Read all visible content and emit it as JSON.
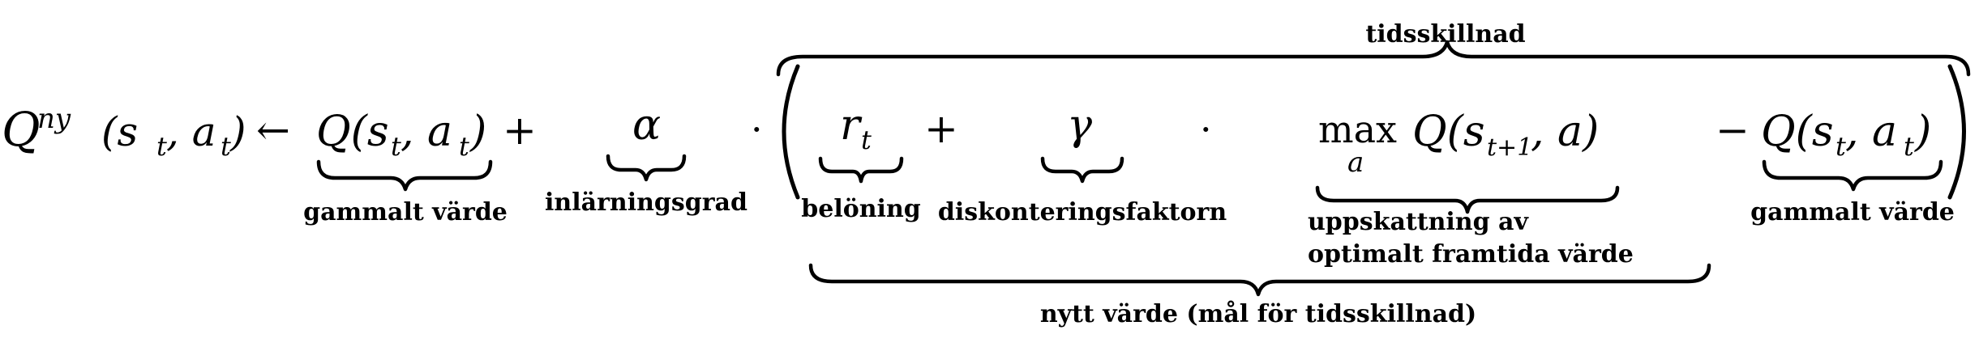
{
  "equation": {
    "lhs_q": "Q",
    "lhs_sup": "ny",
    "lhs_args": "(s",
    "lhs_sub_t": "t",
    "lhs_comma_a": ", a",
    "lhs_sub_t2": "t",
    "lhs_close": ")",
    "arrow": "←",
    "old_q": "Q(s",
    "old_sub_t": "t",
    "old_comma_a": ", a",
    "old_sub_t2": "t",
    "old_close": ")",
    "plus1": "+",
    "alpha": "α",
    "dot1": "·",
    "reward": "r",
    "reward_sub": "t",
    "plus2": "+",
    "gamma": "γ",
    "dot2": "·",
    "max": "max",
    "max_sub": "a",
    "future_q": "Q(s",
    "future_sub": "t+1",
    "future_comma_a": ", a)",
    "minus": "−",
    "old2_q": "Q(s",
    "old2_sub_t": "t",
    "old2_comma_a": ", a",
    "old2_sub_t2": "t",
    "old2_close": ")"
  },
  "labels": {
    "temporal_difference": "tidsskillnad",
    "old_value_1": "gammalt värde",
    "learning_rate": "inlärningsgrad",
    "reward": "belöning",
    "discount_factor": "diskonteringsfaktorn",
    "estimate_line1": "uppskattning av",
    "estimate_line2": "optimalt framtida värde",
    "old_value_2": "gammalt värde",
    "new_value": "nytt värde (mål för tidsskillnad)"
  }
}
